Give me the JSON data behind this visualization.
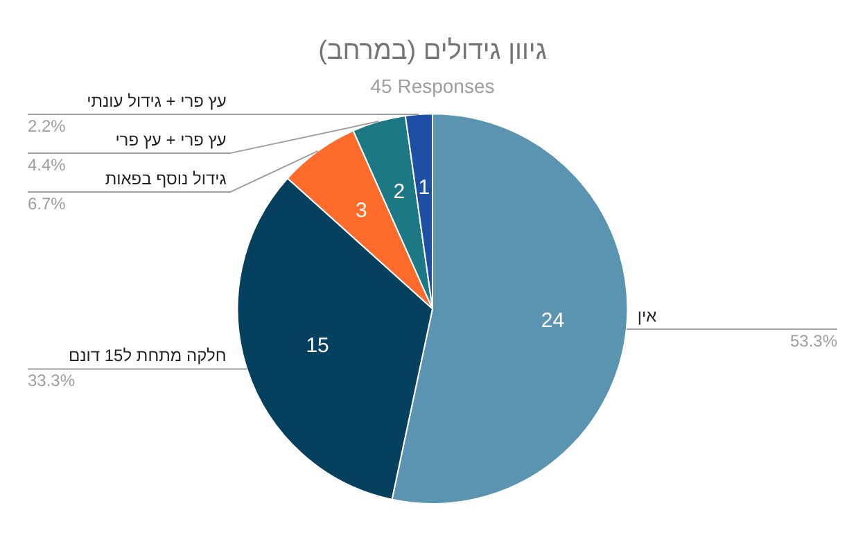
{
  "chart_data": {
    "type": "pie",
    "title": "גיוון גידולים (במרחב)",
    "subtitle": "45 Responses",
    "categories": [
      "אין",
      "חלקה מתחת ל15 דונם",
      "גידול נוסף בפאות",
      "עץ פרי + עץ פרי",
      "עץ פרי + גידול עונתי"
    ],
    "values": [
      24,
      15,
      3,
      2,
      1
    ],
    "colors": [
      "#5b94b1",
      "#05415f",
      "#ff6b2b",
      "#1b7884",
      "#1f4fa5"
    ],
    "annotations": [
      "53.3%",
      "33.3%",
      "6.7%",
      "4.4%",
      "2.2%"
    ],
    "data_labels": true,
    "legend": false
  }
}
